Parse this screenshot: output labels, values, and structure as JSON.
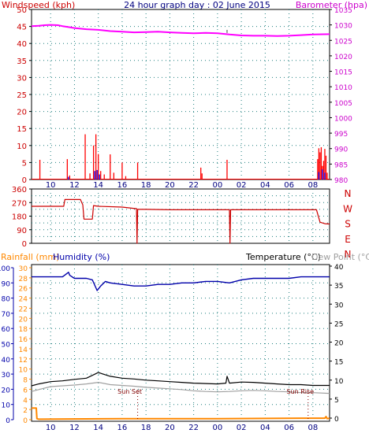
{
  "header": {
    "left_label": "Windspeed (kph)",
    "title": "24 hour graph day : 02 June 2015",
    "right_label": "Barometer (hpa)"
  },
  "colors": {
    "wind": "#ff0000",
    "gust_detail": "#0000ff",
    "barometer": "#ff00ff",
    "left_axis_text": "#cc0000",
    "baro_axis_text": "#cc00cc",
    "direction": "#cc0000",
    "rain": "#ff8800",
    "humidity": "#0000aa",
    "temperature": "#000000",
    "dewpoint": "#a0a0a0",
    "grid": "#1f7f7f",
    "title": "#000080",
    "sun_label": "#800000"
  },
  "chart_data": [
    {
      "type": "line",
      "id": "wind-barometer",
      "title": "24 hour graph day : 02 June 2015",
      "ylabel": "Windspeed (kph)",
      "y2label": "Barometer (hpa)",
      "xlim": [
        8.4,
        33.4
      ],
      "ylim": [
        0,
        50
      ],
      "y2lim": [
        980,
        1035
      ],
      "x_tick_labels": [
        "10",
        "12",
        "14",
        "16",
        "18",
        "20",
        "22",
        "00",
        "02",
        "04",
        "06",
        "08"
      ],
      "y_ticks": [
        0,
        5,
        10,
        15,
        20,
        25,
        30,
        35,
        40,
        45,
        50
      ],
      "y2_ticks": [
        980,
        985,
        990,
        995,
        1000,
        1005,
        1010,
        1015,
        1020,
        1025,
        1030,
        1035
      ],
      "grid": true,
      "series": [
        {
          "key": "barometer",
          "x": [
            8.4,
            9.0,
            9.5,
            10.0,
            10.6,
            11.0,
            11.5,
            12.0,
            13.0,
            14.0,
            15.0,
            16.0,
            17.0,
            18.0,
            19.0,
            20.0,
            21.0,
            22.0,
            23.0,
            24.0,
            25.0,
            26.0,
            27.0,
            28.0,
            29.0,
            30.0,
            31.0,
            32.0,
            33.4
          ],
          "values": [
            1029.6,
            1029.7,
            1029.9,
            1030.0,
            1029.9,
            1029.6,
            1029.3,
            1029.0,
            1028.6,
            1028.4,
            1028.0,
            1027.8,
            1027.6,
            1027.7,
            1027.8,
            1027.6,
            1027.4,
            1027.3,
            1027.4,
            1027.3,
            1026.9,
            1026.6,
            1026.5,
            1026.5,
            1026.4,
            1026.5,
            1026.7,
            1026.9,
            1027.0
          ]
        },
        {
          "key": "wind",
          "type": "bar",
          "x": [
            9.1,
            11.4,
            11.6,
            12.9,
            13.3,
            13.6,
            13.8,
            14.0,
            14.2,
            14.5,
            15.0,
            15.3,
            16.0,
            16.3,
            17.3,
            22.6,
            22.7,
            24.8,
            32.4,
            32.5,
            32.6,
            32.7,
            32.8,
            32.9,
            33.0,
            33.1,
            33.2
          ],
          "values": [
            5.8,
            6.0,
            1.2,
            13.3,
            1.8,
            10.0,
            13.3,
            7.5,
            2.5,
            1.5,
            7.4,
            2.0,
            5.0,
            1.0,
            5.0,
            3.5,
            1.8,
            5.8,
            6.0,
            9.2,
            8.0,
            9.5,
            4.0,
            5.5,
            9.0,
            7.0,
            2.0
          ]
        },
        {
          "key": "gust_detail",
          "type": "bar",
          "x": [
            11.5,
            13.7,
            13.9,
            14.1,
            32.5,
            32.8,
            33.0
          ],
          "values": [
            0.8,
            2.5,
            2.8,
            1.5,
            2.2,
            3.0,
            2.0
          ]
        }
      ]
    },
    {
      "type": "line",
      "id": "wind-direction",
      "xlim": [
        8.4,
        33.4
      ],
      "ylim": [
        0,
        360
      ],
      "x_tick_labels": [],
      "y_ticks": [
        0,
        45,
        90,
        135,
        180,
        225,
        270,
        315,
        360
      ],
      "y_tick_labels": [
        "0",
        "",
        "90",
        "",
        "180",
        "",
        "270",
        "",
        "360"
      ],
      "compass_labels": [
        "N",
        "W",
        "S",
        "E",
        "N"
      ],
      "grid": true,
      "series": [
        {
          "key": "direction",
          "x": [
            8.4,
            9.0,
            10.5,
            11.1,
            11.2,
            12.5,
            12.7,
            12.8,
            13.5,
            13.6,
            14.0,
            16.0,
            17.1,
            17.2,
            17.25,
            17.3,
            18.0,
            20.0,
            24.0,
            25.0,
            25.05,
            25.1,
            26.0,
            28.0,
            30.0,
            32.0,
            32.3,
            32.6,
            33.0,
            33.4
          ],
          "values": [
            245,
            245,
            245,
            245,
            290,
            290,
            255,
            160,
            160,
            250,
            245,
            240,
            230,
            230,
            0,
            225,
            225,
            222,
            222,
            222,
            0,
            222,
            222,
            222,
            222,
            222,
            222,
            140,
            130,
            128
          ]
        }
      ]
    },
    {
      "type": "line",
      "id": "rain-humidity-temperature",
      "xlim": [
        8.4,
        33.4
      ],
      "ylim_humidity": [
        0,
        100
      ],
      "ylim_rain": [
        0,
        30
      ],
      "ylim_temperature": [
        0,
        40
      ],
      "labels": {
        "rainfall": "Rainfall (mm)",
        "humidity": "Humidity (%)",
        "temperature": "Temperature (°C)",
        "dewpoint": "Dew Point (°C)"
      },
      "x_tick_labels": [
        "10",
        "12",
        "14",
        "16",
        "18",
        "20",
        "22",
        "00",
        "02",
        "04",
        "06",
        "08"
      ],
      "y_ticks_humidity": [
        0,
        10,
        20,
        30,
        40,
        50,
        60,
        70,
        80,
        90,
        100
      ],
      "y_ticks_rain": [
        0,
        2,
        4,
        6,
        8,
        10,
        12,
        14,
        16,
        18,
        20,
        22,
        24,
        26,
        28,
        30
      ],
      "y_ticks_temperature": [
        0,
        5,
        10,
        15,
        20,
        25,
        30,
        35,
        40
      ],
      "annotations": [
        {
          "key": "sun_set",
          "text": "Sun Set",
          "x": 17.3
        },
        {
          "key": "sun_rise",
          "text": "Sun Rise",
          "x": 31.6
        }
      ],
      "grid": true,
      "series": [
        {
          "key": "humidity",
          "x": [
            8.4,
            9.5,
            10.0,
            11.0,
            11.5,
            11.6,
            11.8,
            12.0,
            13.0,
            13.5,
            13.9,
            14.2,
            14.6,
            15.0,
            16.0,
            17.0,
            18.0,
            19.0,
            20.0,
            21.0,
            22.0,
            23.0,
            24.0,
            25.0,
            26.0,
            27.0,
            28.0,
            29.0,
            30.0,
            31.0,
            32.0,
            33.4
          ],
          "values": [
            94,
            94,
            94,
            94,
            97,
            95,
            94,
            93,
            93,
            92,
            85,
            88,
            91,
            90,
            89,
            88,
            88,
            89,
            89,
            90,
            90,
            91,
            91,
            90,
            92,
            93,
            93,
            93,
            93,
            94,
            94,
            94
          ]
        },
        {
          "key": "temperature",
          "x": [
            8.4,
            9.0,
            10.0,
            11.0,
            12.0,
            13.0,
            14.0,
            15.0,
            16.0,
            17.0,
            18.0,
            19.0,
            20.0,
            21.0,
            22.0,
            23.0,
            24.0,
            24.7,
            24.8,
            25.0,
            26.0,
            27.0,
            28.0,
            29.0,
            30.0,
            31.0,
            32.0,
            33.4
          ],
          "values": [
            8.5,
            9.0,
            9.6,
            9.8,
            10.2,
            10.5,
            12.0,
            11.0,
            10.5,
            10.3,
            10.0,
            9.8,
            9.6,
            9.4,
            9.2,
            9.1,
            9.0,
            9.2,
            11.0,
            9.2,
            9.5,
            9.4,
            9.2,
            9.0,
            8.8,
            8.8,
            8.6,
            8.6
          ]
        },
        {
          "key": "dewpoint",
          "x": [
            8.4,
            9.0,
            10.0,
            11.0,
            12.0,
            13.0,
            14.0,
            15.0,
            16.0,
            17.0,
            18.0,
            19.0,
            20.0,
            21.0,
            22.0,
            23.0,
            24.0,
            25.0,
            26.0,
            27.0,
            28.0,
            29.0,
            30.0,
            31.0,
            32.0,
            33.4
          ],
          "values": [
            7.0,
            7.5,
            8.3,
            8.5,
            8.7,
            9.0,
            9.4,
            8.8,
            8.6,
            8.4,
            8.1,
            7.9,
            7.7,
            7.5,
            7.2,
            7.0,
            6.9,
            7.0,
            7.2,
            7.3,
            7.2,
            7.0,
            6.9,
            6.7,
            6.7,
            6.5
          ]
        },
        {
          "key": "rain",
          "x": [
            8.4,
            8.7,
            8.8,
            8.85,
            9.0,
            16.0,
            24.0,
            32.0,
            33.0,
            33.1,
            33.2,
            33.4
          ],
          "values": [
            2.3,
            2.3,
            2.3,
            0.2,
            0.1,
            0.2,
            0.2,
            0.3,
            0.3,
            0.6,
            0.2,
            0.3
          ]
        }
      ]
    }
  ]
}
